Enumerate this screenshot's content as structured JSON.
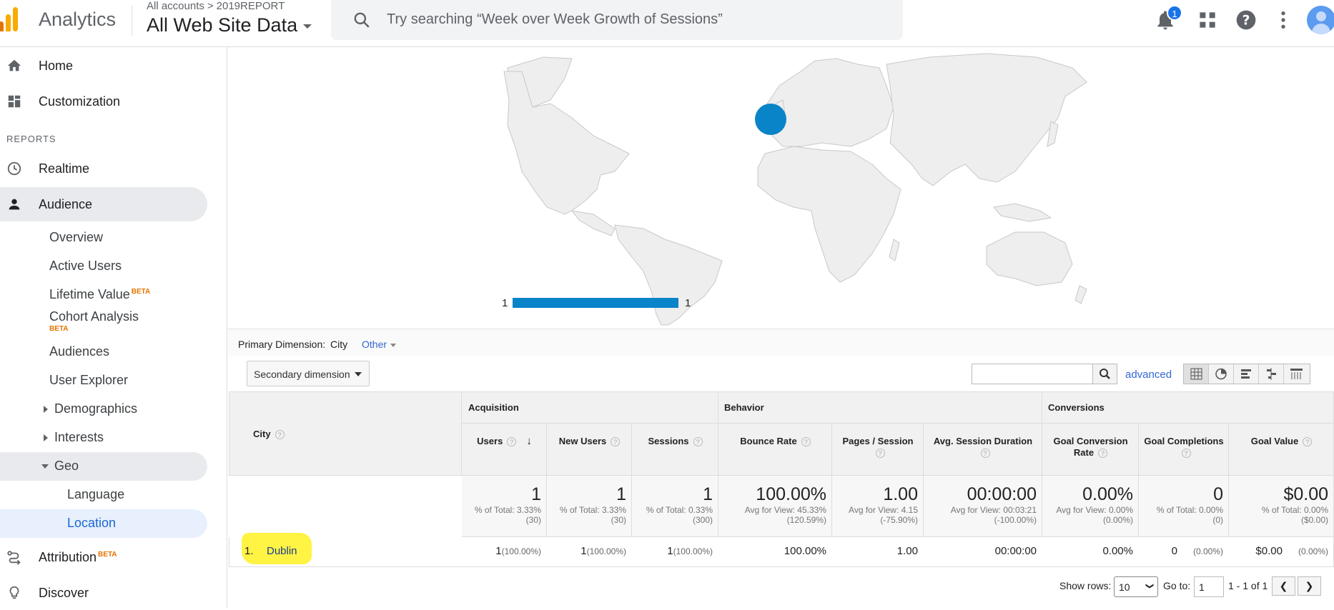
{
  "topbar": {
    "app_name": "Analytics",
    "breadcrumb_account": "All accounts",
    "breadcrumb_sep": ">",
    "breadcrumb_property": "2019REPORT",
    "view_name": "All Web Site Data",
    "search_placeholder": "Try searching “Week over Week Growth of Sessions”",
    "notification_count": "1",
    "icons": [
      "search-icon",
      "bell-icon",
      "apps-icon",
      "help-icon",
      "more-icon",
      "avatar"
    ]
  },
  "sidebar": {
    "home": "Home",
    "customization": "Customization",
    "reports_heading": "REPORTS",
    "realtime": "Realtime",
    "audience": "Audience",
    "audience_items": {
      "overview": "Overview",
      "active_users": "Active Users",
      "lifetime_value": "Lifetime Value",
      "cohort_analysis": "Cohort Analysis",
      "audiences": "Audiences",
      "user_explorer": "User Explorer",
      "demographics": "Demographics",
      "interests": "Interests",
      "geo": "Geo",
      "language": "Language",
      "location": "Location"
    },
    "beta": "BETA",
    "attribution": "Attribution",
    "discover": "Discover"
  },
  "map": {
    "legend_min": "1",
    "legend_max": "1",
    "marker_color": "#0a84c8",
    "marker_location": "Dublin"
  },
  "dimension": {
    "label": "Primary Dimension:",
    "current": "City",
    "other": "Other",
    "secondary": "Secondary dimension",
    "advanced": "advanced"
  },
  "table": {
    "city_header": "City",
    "groups": [
      "Acquisition",
      "Behavior",
      "Conversions"
    ],
    "columns": [
      "Users",
      "New Users",
      "Sessions",
      "Bounce Rate",
      "Pages / Session",
      "Avg. Session Duration",
      "Goal Conversion Rate",
      "Goal Completions",
      "Goal Value"
    ],
    "totals": [
      {
        "value": "1",
        "sub": "% of Total: 3.33% (30)"
      },
      {
        "value": "1",
        "sub": "% of Total: 3.33% (30)"
      },
      {
        "value": "1",
        "sub": "% of Total: 0.33% (300)"
      },
      {
        "value": "100.00%",
        "sub": "Avg for View: 45.33% (120.59%)"
      },
      {
        "value": "1.00",
        "sub": "Avg for View: 4.15 (-75.90%)"
      },
      {
        "value": "00:00:00",
        "sub": "Avg for View: 00:03:21 (-100.00%)"
      },
      {
        "value": "0.00%",
        "sub": "Avg for View: 0.00% (0.00%)"
      },
      {
        "value": "0",
        "sub": "% of Total: 0.00% (0)"
      },
      {
        "value": "$0.00",
        "sub": "% of Total: 0.00% ($0.00)"
      }
    ],
    "rows": [
      {
        "index": "1.",
        "city": "Dublin",
        "cells": [
          {
            "v": "1",
            "p": "(100.00%)"
          },
          {
            "v": "1",
            "p": "(100.00%)"
          },
          {
            "v": "1",
            "p": "(100.00%)"
          },
          {
            "v": "100.00%",
            "p": ""
          },
          {
            "v": "1.00",
            "p": ""
          },
          {
            "v": "00:00:00",
            "p": ""
          },
          {
            "v": "0.00%",
            "p": ""
          },
          {
            "v": "0",
            "p": "(0.00%)"
          },
          {
            "v": "$0.00",
            "p": "(0.00%)"
          }
        ]
      }
    ]
  },
  "footer": {
    "show_rows_label": "Show rows:",
    "show_rows_value": "10",
    "goto_label": "Go to:",
    "goto_value": "1",
    "range": "1 - 1 of 1"
  }
}
